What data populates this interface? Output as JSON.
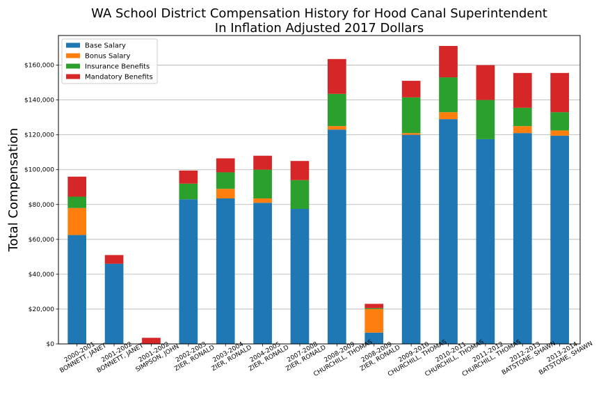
{
  "chart_data": {
    "type": "bar",
    "stacked": true,
    "title": "WA School District Compensation History for Hood Canal Superintendent\nIn Inflation Adjusted 2017 Dollars",
    "xlabel": "",
    "ylabel": "Total Compensation",
    "ylim": [
      0,
      177000
    ],
    "yticks": [
      0,
      20000,
      40000,
      60000,
      80000,
      100000,
      120000,
      140000,
      160000
    ],
    "ytick_labels": [
      "$0",
      "$20,000",
      "$40,000",
      "$60,000",
      "$80,000",
      "$100,000",
      "$120,000",
      "$140,000",
      "$160,000"
    ],
    "grid": "horizontal",
    "legend_position": "top-left",
    "categories": [
      "2000-2001\nBONNETT, JANET",
      "2001-2002\nBONNETT, JANET",
      "2001-2002\nSIMPSON, JOHN",
      "2002-2003\nZIER, RONALD",
      "2003-2004\nZIER, RONALD",
      "2004-2005\nZIER, RONALD",
      "2007-2008\nZIER, RONALD",
      "2008-2009\nCHURCHILL, THOMAS",
      "2008-2009\nZIER, RONALD",
      "2009-2010\nCHURCHILL, THOMAS",
      "2010-2011\nCHURCHILL, THOMAS",
      "2011-2012\nCHURCHILL, THOMAS",
      "2012-2013\nBATSTONE, SHAWN",
      "2013-2014\nBATSTONE, SHAWN"
    ],
    "series": [
      {
        "name": "Base Salary",
        "color": "#1f77b4",
        "values": [
          62500,
          46000,
          0,
          83000,
          83500,
          81000,
          77500,
          123000,
          6500,
          120000,
          129000,
          117500,
          121000,
          119500
        ]
      },
      {
        "name": "Bonus Salary",
        "color": "#ff7f0e",
        "values": [
          15500,
          0,
          0,
          0,
          5500,
          2500,
          0,
          2000,
          13500,
          1000,
          4000,
          0,
          4000,
          3000
        ]
      },
      {
        "name": "Insurance Benefits",
        "color": "#2ca02c",
        "values": [
          6500,
          0,
          0,
          9000,
          9500,
          16500,
          16500,
          18500,
          500,
          20500,
          20000,
          22500,
          10500,
          10500
        ]
      },
      {
        "name": "Mandatory Benefits",
        "color": "#d62728",
        "values": [
          11500,
          5000,
          3500,
          7500,
          8000,
          8000,
          11000,
          20000,
          2500,
          9500,
          18000,
          20000,
          20000,
          22500
        ]
      }
    ]
  }
}
